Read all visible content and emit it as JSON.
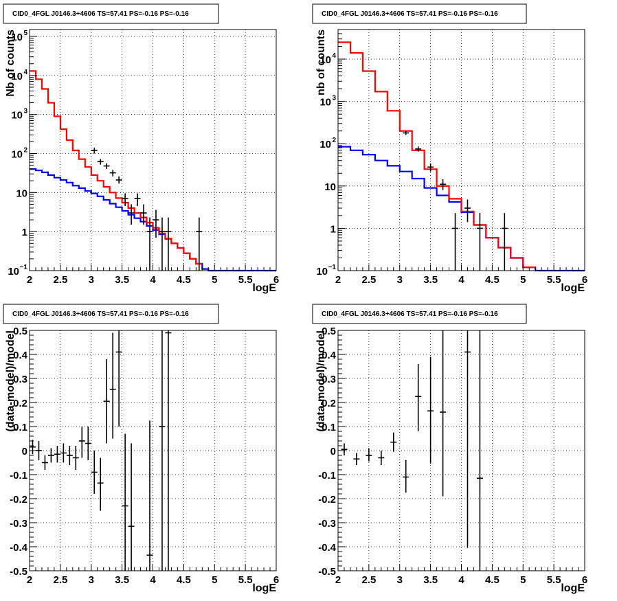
{
  "chart_data": [
    {
      "type": "step",
      "title": "CID0_4FGL J0146.3+4606 TS=57.41 PS=-0.16 PS=-0.16",
      "xlabel": "logE",
      "ylabel": "Nb of counts",
      "xlim": [
        2,
        6
      ],
      "ylim": [
        0.1,
        150000
      ],
      "yscale": "log",
      "grid": true,
      "xticks": [
        "2",
        "2.5",
        "3",
        "3.5",
        "4",
        "4.5",
        "5",
        "5.5",
        "6"
      ],
      "yticks": [
        {
          "v": 0.1,
          "t": "10"
        },
        {
          "v": 1,
          "t": "1"
        },
        {
          "v": 10,
          "t": "10"
        },
        {
          "v": 100,
          "t": "10"
        },
        {
          "v": 1000,
          "t": "10"
        },
        {
          "v": 10000,
          "t": "10"
        },
        {
          "v": 100000,
          "t": "10"
        }
      ],
      "series": [
        {
          "color": "#0000ff",
          "edges": [
            2,
            2.1,
            2.2,
            2.3,
            2.4,
            2.5,
            2.6,
            2.7,
            2.8,
            2.9,
            3.0,
            3.1,
            3.2,
            3.3,
            3.4,
            3.5,
            3.6,
            3.7,
            3.8,
            3.9,
            4.0,
            4.1,
            4.2,
            4.3,
            4.4,
            4.5,
            4.6,
            4.7,
            4.8,
            4.9,
            5.0,
            5.1,
            5.2,
            5.3,
            5.4,
            5.5,
            5.6,
            5.7,
            5.8,
            5.9,
            6.0
          ],
          "values": [
            40,
            37,
            33,
            28,
            24,
            21,
            18,
            15,
            13,
            11,
            9.5,
            8,
            6.5,
            5.2,
            4.2,
            3.4,
            2.7,
            2.2,
            1.8,
            1.4,
            1.1,
            0.85,
            0.65,
            0.5,
            0.38,
            0.28,
            0.2,
            0.15,
            0.11,
            0.1,
            0.1,
            0.1,
            0.1,
            0.1,
            0.1,
            0.1,
            0.1,
            0.1,
            0.1,
            0.1
          ]
        },
        {
          "color": "#ff0000",
          "edges": [
            2,
            2.1,
            2.2,
            2.3,
            2.4,
            2.5,
            2.6,
            2.7,
            2.8,
            2.9,
            3.0,
            3.1,
            3.2,
            3.3,
            3.4,
            3.5,
            3.6,
            3.7,
            3.8,
            3.9,
            4.0,
            4.1,
            4.2,
            4.3,
            4.4,
            4.5,
            4.6,
            4.7,
            4.8
          ],
          "values": [
            13000,
            8000,
            4500,
            2000,
            900,
            420,
            220,
            120,
            72,
            45,
            28,
            20,
            14,
            10,
            7.2,
            5.5,
            4,
            3,
            2.3,
            1.7,
            1.25,
            0.9,
            0.66,
            0.5,
            0.38,
            0.28,
            0.2,
            0.15
          ]
        }
      ],
      "points": {
        "color": "#000000",
        "data": [
          {
            "x": 3.05,
            "y": 120,
            "lo": 100,
            "hi": 140
          },
          {
            "x": 3.15,
            "y": 62,
            "lo": 52,
            "hi": 72
          },
          {
            "x": 3.25,
            "y": 48,
            "lo": 40,
            "hi": 56
          },
          {
            "x": 3.35,
            "y": 32,
            "lo": 26,
            "hi": 38
          },
          {
            "x": 3.45,
            "y": 21,
            "lo": 17,
            "hi": 26
          },
          {
            "x": 3.55,
            "y": 7,
            "lo": 4.5,
            "hi": 9.5
          },
          {
            "x": 3.65,
            "y": 3,
            "lo": 1.5,
            "hi": 5
          },
          {
            "x": 3.75,
            "y": 7,
            "lo": 4.5,
            "hi": 9.5
          },
          {
            "x": 3.85,
            "y": 3,
            "lo": 1.5,
            "hi": 5
          },
          {
            "x": 3.95,
            "y": 1,
            "lo": 0.1,
            "hi": 2.3
          },
          {
            "x": 4.05,
            "y": 2,
            "lo": 0.7,
            "hi": 3.6
          },
          {
            "x": 4.15,
            "y": 1,
            "lo": 0.1,
            "hi": 2.3
          },
          {
            "x": 4.25,
            "y": 1,
            "lo": 0.1,
            "hi": 2.3
          },
          {
            "x": 4.75,
            "y": 1,
            "lo": 0.1,
            "hi": 2.3
          }
        ]
      }
    },
    {
      "type": "step",
      "title": "CID0_4FGL J0146.3+4606 TS=57.41 PS=-0.16 PS=-0.16",
      "xlabel": "logE",
      "ylabel": "nb of counts",
      "xlim": [
        2,
        6
      ],
      "ylim": [
        0.1,
        50000
      ],
      "yscale": "log",
      "grid": true,
      "xticks": [
        "2",
        "2.5",
        "3",
        "3.5",
        "4",
        "4.5",
        "5",
        "5.5",
        "6"
      ],
      "yticks": [
        {
          "v": 0.1,
          "t": "10"
        },
        {
          "v": 1,
          "t": "1"
        },
        {
          "v": 10,
          "t": "10"
        },
        {
          "v": 100,
          "t": "10"
        },
        {
          "v": 1000,
          "t": "10"
        },
        {
          "v": 10000,
          "t": "10"
        }
      ],
      "series": [
        {
          "color": "#0000ff",
          "edges": [
            2,
            2.2,
            2.4,
            2.6,
            2.8,
            3.0,
            3.2,
            3.4,
            3.6,
            3.8,
            4.0,
            4.2,
            4.4,
            4.6,
            4.8,
            5.0,
            5.2,
            5.4,
            5.6,
            5.8,
            6.0
          ],
          "values": [
            85,
            70,
            55,
            40,
            30,
            22,
            15,
            9,
            6,
            4.2,
            2.4,
            1.2,
            0.6,
            0.35,
            0.2,
            0.12,
            0.1,
            0.1,
            0.1,
            0.1
          ]
        },
        {
          "color": "#ff0000",
          "edges": [
            2,
            2.2,
            2.4,
            2.6,
            2.8,
            3.0,
            3.2,
            3.4,
            3.6,
            3.8,
            4.0,
            4.2,
            4.4,
            4.6,
            4.8,
            5.0,
            5.2
          ],
          "values": [
            25000,
            14000,
            5200,
            1700,
            600,
            200,
            70,
            25,
            10,
            5,
            2.5,
            1.2,
            0.6,
            0.35,
            0.2,
            0.12
          ]
        }
      ],
      "points": {
        "color": "#000000",
        "data": [
          {
            "x": 3.1,
            "y": 180,
            "lo": 160,
            "hi": 200
          },
          {
            "x": 3.3,
            "y": 75,
            "lo": 65,
            "hi": 86
          },
          {
            "x": 3.5,
            "y": 28,
            "lo": 22,
            "hi": 34
          },
          {
            "x": 3.7,
            "y": 11,
            "lo": 8,
            "hi": 14.5
          },
          {
            "x": 3.9,
            "y": 1,
            "lo": 0.1,
            "hi": 2.3
          },
          {
            "x": 4.1,
            "y": 3,
            "lo": 1.4,
            "hi": 4.8
          },
          {
            "x": 4.3,
            "y": 1,
            "lo": 0.1,
            "hi": 2.3
          },
          {
            "x": 4.7,
            "y": 1,
            "lo": 0.1,
            "hi": 2.3
          }
        ]
      }
    },
    {
      "type": "errorbar",
      "title": "CID0_4FGL J0146.3+4606 TS=57.41 PS=-0.16 PS=-0.16",
      "xlabel": "logE",
      "ylabel": "(data-model)/model",
      "xlim": [
        2,
        6
      ],
      "ylim": [
        -0.5,
        0.5
      ],
      "yscale": "linear",
      "grid": true,
      "xticks": [
        "2",
        "2.5",
        "3",
        "3.5",
        "4",
        "4.5",
        "5",
        "5.5",
        "6"
      ],
      "yticks": [
        {
          "v": -0.5,
          "t": "-0.5"
        },
        {
          "v": -0.4,
          "t": "-0.4"
        },
        {
          "v": -0.3,
          "t": "-0.3"
        },
        {
          "v": -0.2,
          "t": "-0.2"
        },
        {
          "v": -0.1,
          "t": "-0.1"
        },
        {
          "v": 0,
          "t": "0"
        },
        {
          "v": 0.1,
          "t": "0.1"
        },
        {
          "v": 0.2,
          "t": "0.2"
        },
        {
          "v": 0.3,
          "t": "0.3"
        },
        {
          "v": 0.4,
          "t": "0.4"
        },
        {
          "v": 0.5,
          "t": "0.5"
        }
      ],
      "points": {
        "color": "#000000",
        "xerr": 0.05,
        "data": [
          {
            "x": 2.05,
            "y": 0.015,
            "lo": -0.015,
            "hi": 0.045
          },
          {
            "x": 2.15,
            "y": 0.0,
            "lo": -0.04,
            "hi": 0.04
          },
          {
            "x": 2.25,
            "y": -0.05,
            "lo": -0.08,
            "hi": -0.02
          },
          {
            "x": 2.35,
            "y": -0.02,
            "lo": -0.05,
            "hi": 0.01
          },
          {
            "x": 2.45,
            "y": -0.015,
            "lo": -0.05,
            "hi": 0.02
          },
          {
            "x": 2.55,
            "y": -0.01,
            "lo": -0.05,
            "hi": 0.03
          },
          {
            "x": 2.65,
            "y": -0.02,
            "lo": -0.06,
            "hi": 0.02
          },
          {
            "x": 2.75,
            "y": -0.03,
            "lo": -0.08,
            "hi": 0.02
          },
          {
            "x": 2.85,
            "y": 0.04,
            "lo": -0.03,
            "hi": 0.1
          },
          {
            "x": 2.95,
            "y": 0.03,
            "lo": -0.04,
            "hi": 0.1
          },
          {
            "x": 3.05,
            "y": -0.09,
            "lo": -0.18,
            "hi": 0.0
          },
          {
            "x": 3.15,
            "y": -0.135,
            "lo": -0.25,
            "hi": -0.03
          },
          {
            "x": 3.25,
            "y": 0.205,
            "lo": 0.03,
            "hi": 0.38
          },
          {
            "x": 3.35,
            "y": 0.255,
            "lo": 0.05,
            "hi": 0.49
          },
          {
            "x": 3.45,
            "y": 0.41,
            "lo": 0.1,
            "hi": 0.5
          },
          {
            "x": 3.55,
            "y": -0.23,
            "lo": -0.5,
            "hi": 0.07
          },
          {
            "x": 3.65,
            "y": -0.315,
            "lo": -0.5,
            "hi": 0.03
          },
          {
            "x": 3.95,
            "y": -0.435,
            "lo": -0.5,
            "hi": 0.125
          },
          {
            "x": 4.15,
            "y": 0.1,
            "lo": -0.5,
            "hi": 0.5
          },
          {
            "x": 4.25,
            "y": 0.49,
            "lo": -0.5,
            "hi": 0.5
          }
        ]
      }
    },
    {
      "type": "errorbar",
      "title": "CID0_4FGL J0146.3+4606 TS=57.41 PS=-0.16 PS=-0.16",
      "xlabel": "logE",
      "ylabel": "(data-model)/model",
      "xlim": [
        2,
        6
      ],
      "ylim": [
        -0.5,
        0.5
      ],
      "yscale": "linear",
      "grid": true,
      "xticks": [
        "2",
        "2.5",
        "3",
        "3.5",
        "4",
        "4.5",
        "5",
        "5.5",
        "6"
      ],
      "yticks": [
        {
          "v": -0.5,
          "t": "-0.5"
        },
        {
          "v": -0.4,
          "t": "-0.4"
        },
        {
          "v": -0.3,
          "t": "-0.3"
        },
        {
          "v": -0.2,
          "t": "-0.2"
        },
        {
          "v": -0.1,
          "t": "-0.1"
        },
        {
          "v": 0,
          "t": "0"
        },
        {
          "v": 0.1,
          "t": "0.1"
        },
        {
          "v": 0.2,
          "t": "0.2"
        },
        {
          "v": 0.3,
          "t": "0.3"
        },
        {
          "v": 0.4,
          "t": "0.4"
        },
        {
          "v": 0.5,
          "t": "0.5"
        }
      ],
      "points": {
        "color": "#000000",
        "xerr": 0.1,
        "data": [
          {
            "x": 2.1,
            "y": 0.005,
            "lo": -0.02,
            "hi": 0.03
          },
          {
            "x": 2.3,
            "y": -0.035,
            "lo": -0.06,
            "hi": -0.01
          },
          {
            "x": 2.5,
            "y": -0.02,
            "lo": -0.045,
            "hi": 0.01
          },
          {
            "x": 2.7,
            "y": -0.03,
            "lo": -0.06,
            "hi": 0.0
          },
          {
            "x": 2.9,
            "y": 0.035,
            "lo": -0.005,
            "hi": 0.075
          },
          {
            "x": 3.1,
            "y": -0.11,
            "lo": -0.175,
            "hi": -0.04
          },
          {
            "x": 3.3,
            "y": 0.225,
            "lo": 0.08,
            "hi": 0.36
          },
          {
            "x": 3.5,
            "y": 0.165,
            "lo": -0.055,
            "hi": 0.39
          },
          {
            "x": 3.7,
            "y": 0.16,
            "lo": -0.19,
            "hi": 0.5
          },
          {
            "x": 4.1,
            "y": 0.41,
            "lo": -0.405,
            "hi": 0.5
          },
          {
            "x": 4.3,
            "y": -0.115,
            "lo": -0.5,
            "hi": 0.5
          }
        ]
      }
    }
  ]
}
